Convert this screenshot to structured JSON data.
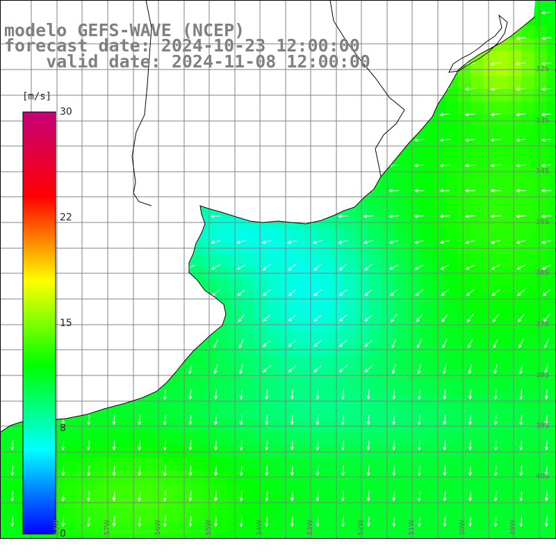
{
  "title": {
    "line1": "modelo GEFS-WAVE (NCEP)",
    "line2": "forecast date: 2024-10-23 12:00:00",
    "line3": "    valid date: 2024-11-08 12:00:00"
  },
  "colorbar": {
    "unit": "[m/s]",
    "min": 0,
    "max": 30,
    "ticks": [
      {
        "label": "30",
        "value": 30
      },
      {
        "label": "22",
        "value": 22.5
      },
      {
        "label": "15",
        "value": 15
      },
      {
        "label": "8",
        "value": 7.5
      },
      {
        "label": "0",
        "value": 0
      }
    ],
    "stops": [
      "#0000ff",
      "#00ffff",
      "#00ff00",
      "#ffff00",
      "#ff0000",
      "#c4007a"
    ]
  },
  "map": {
    "lon_range": [
      -59,
      -48.6
    ],
    "lat_range": [
      -41.4,
      -30.5
    ],
    "lat_labels": [
      "32S",
      "33S",
      "34S",
      "35S",
      "36S",
      "37S",
      "38S",
      "39S",
      "40S"
    ],
    "lon_labels": [
      "58W",
      "57W",
      "56W",
      "55W",
      "54W",
      "53W",
      "52W",
      "51W",
      "50W",
      "49W"
    ],
    "land_color": "#ffffff",
    "grid_color": "#808080",
    "arrow_color": "#ffffff",
    "coast_color": "#000000"
  }
}
